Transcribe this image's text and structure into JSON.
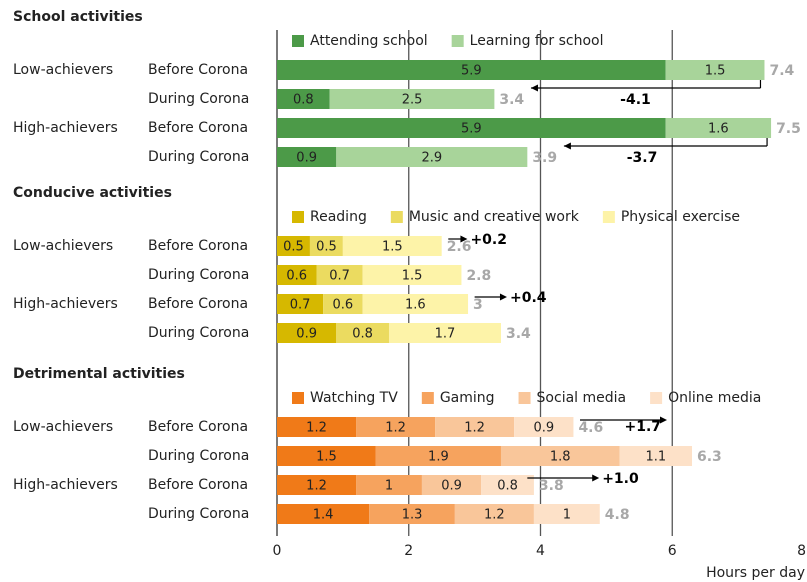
{
  "chart_data": [
    {
      "type": "bar",
      "title": "School activities",
      "groups": [
        "Low-achievers",
        null,
        "High-achievers",
        null
      ],
      "categories": [
        "Before Corona",
        "During Corona",
        "Before Corona",
        "During Corona"
      ],
      "series": [
        {
          "name": "Attending school",
          "color": "#4c9a48",
          "values": [
            5.9,
            0.8,
            5.9,
            0.9
          ]
        },
        {
          "name": "Learning for school",
          "color": "#a8d49a",
          "values": [
            1.5,
            2.5,
            1.6,
            2.9
          ]
        }
      ],
      "totals": [
        7.4,
        3.4,
        7.5,
        3.9
      ],
      "annotations": [
        "-4.1",
        "-3.7"
      ]
    },
    {
      "type": "bar",
      "title": "Conducive activities",
      "groups": [
        "Low-achievers",
        null,
        "High-achievers",
        null
      ],
      "categories": [
        "Before Corona",
        "During Corona",
        "Before Corona",
        "During Corona"
      ],
      "series": [
        {
          "name": "Reading",
          "color": "#d6b800",
          "values": [
            0.5,
            0.6,
            0.7,
            0.9
          ]
        },
        {
          "name": "Music and creative work",
          "color": "#ebdb60",
          "values": [
            0.5,
            0.7,
            0.6,
            0.8
          ]
        },
        {
          "name": "Physical exercise",
          "color": "#fdf3a8",
          "values": [
            1.5,
            1.5,
            1.6,
            1.7
          ]
        }
      ],
      "totals": [
        2.6,
        2.8,
        3.0,
        3.4
      ],
      "annotations": [
        "+0.2",
        "+0.4"
      ]
    },
    {
      "type": "bar",
      "title": "Detrimental activities",
      "groups": [
        "Low-achievers",
        null,
        "High-achievers",
        null
      ],
      "categories": [
        "Before Corona",
        "During Corona",
        "Before Corona",
        "During Corona"
      ],
      "series": [
        {
          "name": "Watching TV",
          "color": "#f07a18",
          "values": [
            1.2,
            1.5,
            1.2,
            1.4
          ]
        },
        {
          "name": "Gaming",
          "color": "#f6a35e",
          "values": [
            1.2,
            1.9,
            1.0,
            1.3
          ]
        },
        {
          "name": "Social media",
          "color": "#f9c69a",
          "values": [
            1.2,
            1.8,
            0.9,
            1.2
          ]
        },
        {
          "name": "Online media",
          "color": "#fde1c8",
          "values": [
            0.9,
            1.1,
            0.8,
            1.0
          ]
        }
      ],
      "totals": [
        4.6,
        6.3,
        3.8,
        4.8
      ],
      "annotations": [
        "+1.7",
        "+1.0"
      ]
    }
  ],
  "x_axis": {
    "xlim": [
      0,
      8
    ],
    "xticks": [
      0,
      2,
      4,
      6,
      8
    ],
    "xlabel": "Hours per day"
  }
}
